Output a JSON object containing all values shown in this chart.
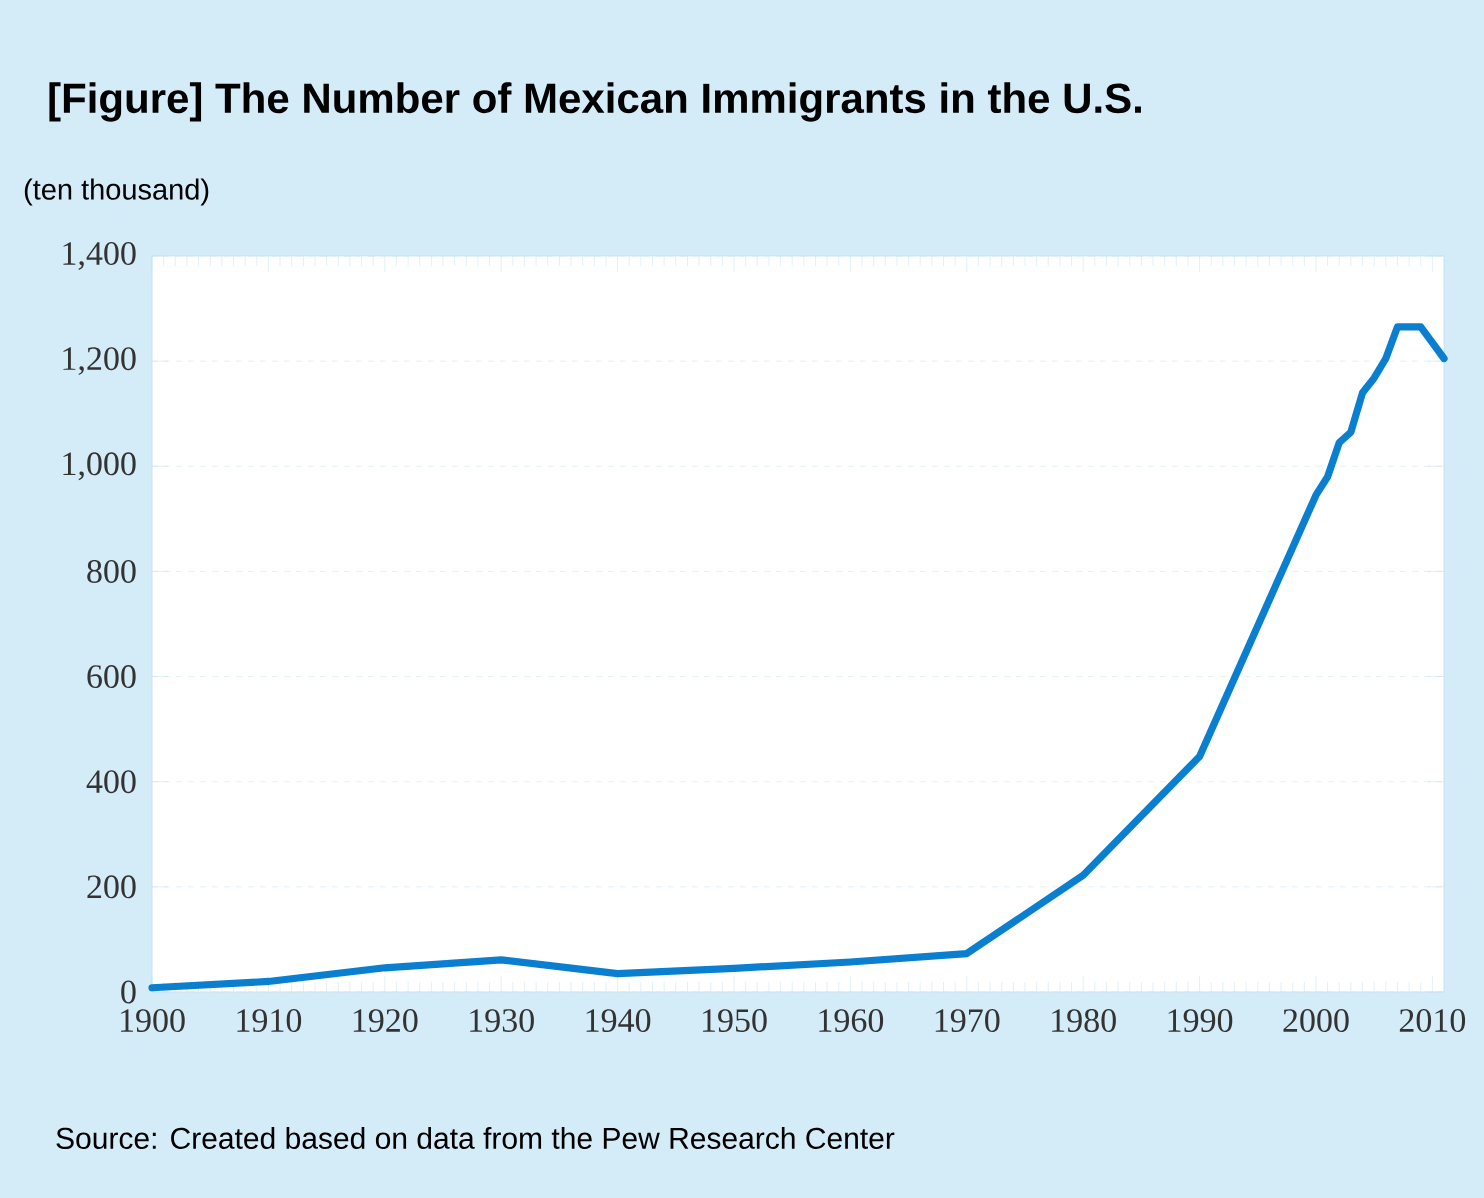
{
  "chart_data": {
    "type": "line",
    "title": "[Figure] The Number of Mexican Immigrants in the U.S.",
    "ylabel": "(ten thousand)",
    "x": [
      1900,
      1910,
      1920,
      1930,
      1940,
      1950,
      1960,
      1970,
      1980,
      1990,
      2000,
      2001,
      2002,
      2003,
      2004,
      2005,
      2006,
      2007,
      2008,
      2009,
      2010,
      2011
    ],
    "series": [
      {
        "color": "#0a7fcf",
        "values": [
          8,
          20,
          46,
          61,
          35,
          45,
          57,
          73,
          222,
          448,
          945,
          980,
          1045,
          1065,
          1140,
          1168,
          1205,
          1265,
          1265,
          1265,
          1235,
          1205
        ]
      }
    ],
    "xlim": [
      1900,
      2011
    ],
    "ylim": [
      0,
      1400
    ],
    "xticks": [
      1900,
      1910,
      1920,
      1930,
      1940,
      1950,
      1960,
      1970,
      1980,
      1990,
      2000,
      2010
    ],
    "yticks": [
      0,
      {
        "value": 200,
        "label": "200"
      },
      {
        "value": 400,
        "label": "400"
      },
      {
        "value": 600,
        "label": "600"
      },
      {
        "value": 800,
        "label": "800"
      },
      {
        "value": 1000,
        "label": "1,000"
      },
      {
        "value": 1200,
        "label": "1,200"
      },
      {
        "value": 1400,
        "label": "1,400"
      }
    ],
    "grid": "y",
    "line_style": "solid",
    "annotations": [
      "Source: Created based on data from the Pew Research Center"
    ]
  }
}
